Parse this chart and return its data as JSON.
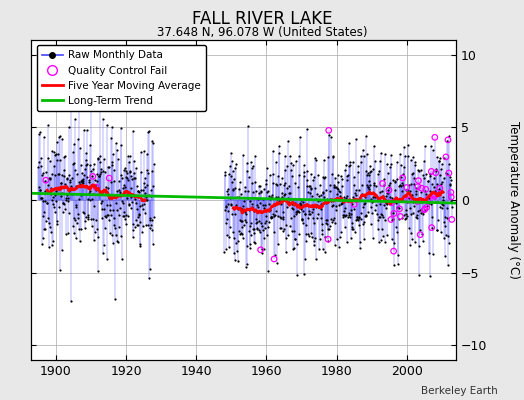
{
  "title": "FALL RIVER LAKE",
  "subtitle": "37.648 N, 96.078 W (United States)",
  "ylabel": "Temperature Anomaly (°C)",
  "credit": "Berkeley Earth",
  "ylim": [
    -11,
    11
  ],
  "xlim": [
    1893,
    2014
  ],
  "xticks": [
    1900,
    1920,
    1940,
    1960,
    1980,
    2000
  ],
  "yticks": [
    -10,
    -5,
    0,
    5,
    10
  ],
  "background_color": "#e8e8e8",
  "plot_bg_color": "#ffffff",
  "raw_color": "#4444ff",
  "dot_color": "#000000",
  "qc_fail_color": "#ff00ff",
  "moving_avg_color": "#ff0000",
  "trend_color": "#00bb00",
  "seed": 42,
  "start_year": 1895,
  "end_year": 1927,
  "start_year2": 1948,
  "end_year2": 2012,
  "noise_std": 2.0,
  "moving_avg_window": 60
}
